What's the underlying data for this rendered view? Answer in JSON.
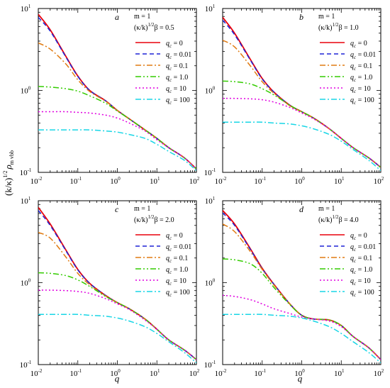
{
  "figure": {
    "ylabel_main": "(k/κ)",
    "ylabel_exp": "1/2",
    "ylabel_rho": "ρ",
    "ylabel_sub": "m vbb",
    "xlabel": "q"
  },
  "chart_data": [
    {
      "type": "line",
      "panel_label": "a",
      "scale": "log-log",
      "xlim": [
        0.01,
        100
      ],
      "ylim": [
        0.1,
        10
      ],
      "x_ticks": [
        "10",
        "10",
        "10",
        "10",
        "10"
      ],
      "x_tick_exps": [
        "-2",
        "-1",
        "0",
        "1",
        "2"
      ],
      "y_ticks": [
        "10",
        "10",
        "10"
      ],
      "y_tick_exps": [
        "-1",
        "0",
        "1"
      ],
      "legend_title1": "m = 1",
      "legend_title2": "(κ/k)",
      "legend_title2_exp": "1/2",
      "legend_title2_rest": "β = 0.5",
      "x": [
        0.01,
        0.02,
        0.05,
        0.1,
        0.2,
        0.5,
        1,
        2,
        5,
        10,
        20,
        50,
        100
      ],
      "series": [
        {
          "name": "q",
          "name_sub": "c",
          "name_rest": " = 0",
          "color": "#e8000b",
          "dash": "solid",
          "values": [
            8.5,
            5.5,
            2.6,
            1.5,
            1.0,
            0.75,
            0.57,
            0.45,
            0.33,
            0.26,
            0.2,
            0.15,
            0.11
          ]
        },
        {
          "name": "q",
          "name_sub": "c",
          "name_rest": " = 0.01",
          "color": "#1f24d6",
          "dash": "dash",
          "values": [
            7.8,
            5.3,
            2.55,
            1.48,
            1.0,
            0.75,
            0.57,
            0.45,
            0.33,
            0.26,
            0.2,
            0.15,
            0.11
          ]
        },
        {
          "name": "q",
          "name_sub": "c",
          "name_rest": " = 0.1",
          "color": "#e07b12",
          "dash": "dashdot",
          "values": [
            3.8,
            3.2,
            2.1,
            1.35,
            0.97,
            0.74,
            0.57,
            0.45,
            0.33,
            0.26,
            0.2,
            0.15,
            0.11
          ]
        },
        {
          "name": "q",
          "name_sub": "c",
          "name_rest": " = 1.0",
          "color": "#33cc00",
          "dash": "dashdotdot",
          "values": [
            1.12,
            1.1,
            1.05,
            0.98,
            0.86,
            0.7,
            0.56,
            0.45,
            0.33,
            0.26,
            0.2,
            0.15,
            0.11
          ]
        },
        {
          "name": "q",
          "name_sub": "c",
          "name_rest": " = 10",
          "color": "#e000e0",
          "dash": "dot",
          "values": [
            0.55,
            0.55,
            0.55,
            0.54,
            0.53,
            0.5,
            0.46,
            0.4,
            0.32,
            0.25,
            0.2,
            0.15,
            0.11
          ]
        },
        {
          "name": "q",
          "name_sub": "c",
          "name_rest": " = 100",
          "color": "#19d6e6",
          "dash": "dashdot",
          "values": [
            0.33,
            0.33,
            0.33,
            0.33,
            0.33,
            0.32,
            0.31,
            0.29,
            0.26,
            0.22,
            0.18,
            0.14,
            0.105
          ]
        }
      ]
    },
    {
      "type": "line",
      "panel_label": "b",
      "scale": "log-log",
      "xlim": [
        0.01,
        100
      ],
      "ylim": [
        0.1,
        10
      ],
      "x_ticks": [
        "10",
        "10",
        "10",
        "10",
        "10"
      ],
      "x_tick_exps": [
        "-2",
        "-1",
        "0",
        "1",
        "2"
      ],
      "y_ticks": [
        "10",
        "10",
        "10"
      ],
      "y_tick_exps": [
        "-1",
        "0",
        "1"
      ],
      "legend_title1": "m = 1",
      "legend_title2": "(κ/k)",
      "legend_title2_exp": "1/2",
      "legend_title2_rest": "β = 1.0",
      "x": [
        0.01,
        0.02,
        0.05,
        0.1,
        0.2,
        0.5,
        1,
        2,
        5,
        10,
        20,
        50,
        100
      ],
      "series": [
        {
          "name": "q",
          "name_sub": "c",
          "name_rest": " = 0",
          "color": "#e8000b",
          "dash": "solid",
          "values": [
            7.8,
            5.0,
            2.4,
            1.4,
            0.95,
            0.66,
            0.55,
            0.46,
            0.34,
            0.26,
            0.2,
            0.15,
            0.115
          ]
        },
        {
          "name": "q",
          "name_sub": "c",
          "name_rest": " = 0.01",
          "color": "#1f24d6",
          "dash": "dash",
          "values": [
            7.2,
            4.8,
            2.35,
            1.38,
            0.95,
            0.66,
            0.55,
            0.46,
            0.34,
            0.26,
            0.2,
            0.15,
            0.115
          ]
        },
        {
          "name": "q",
          "name_sub": "c",
          "name_rest": " = 0.1",
          "color": "#e07b12",
          "dash": "dashdot",
          "values": [
            4.1,
            3.4,
            2.0,
            1.28,
            0.92,
            0.65,
            0.55,
            0.46,
            0.34,
            0.26,
            0.2,
            0.15,
            0.115
          ]
        },
        {
          "name": "q",
          "name_sub": "c",
          "name_rest": " = 1.0",
          "color": "#33cc00",
          "dash": "dashdotdot",
          "values": [
            1.3,
            1.28,
            1.2,
            1.05,
            0.88,
            0.66,
            0.55,
            0.46,
            0.34,
            0.26,
            0.2,
            0.15,
            0.115
          ]
        },
        {
          "name": "q",
          "name_sub": "c",
          "name_rest": " = 10",
          "color": "#e000e0",
          "dash": "dot",
          "values": [
            0.8,
            0.8,
            0.79,
            0.77,
            0.72,
            0.62,
            0.53,
            0.45,
            0.34,
            0.26,
            0.2,
            0.15,
            0.115
          ]
        },
        {
          "name": "q",
          "name_sub": "c",
          "name_rest": " = 100",
          "color": "#19d6e6",
          "dash": "dashdot",
          "values": [
            0.41,
            0.41,
            0.41,
            0.41,
            0.4,
            0.39,
            0.37,
            0.34,
            0.29,
            0.24,
            0.19,
            0.14,
            0.105
          ]
        }
      ]
    },
    {
      "type": "line",
      "panel_label": "c",
      "scale": "log-log",
      "xlim": [
        0.01,
        100
      ],
      "ylim": [
        0.1,
        10
      ],
      "x_ticks": [
        "10",
        "10",
        "10",
        "10",
        "10"
      ],
      "x_tick_exps": [
        "-2",
        "-1",
        "0",
        "1",
        "2"
      ],
      "y_ticks": [
        "10",
        "10",
        "10"
      ],
      "y_tick_exps": [
        "-1",
        "0",
        "1"
      ],
      "legend_title1": "m = 1",
      "legend_title2": "(κ/k)",
      "legend_title2_exp": "1/2",
      "legend_title2_rest": "β = 2.0",
      "x": [
        0.01,
        0.02,
        0.05,
        0.1,
        0.2,
        0.5,
        1,
        2,
        5,
        10,
        20,
        50,
        100
      ],
      "series": [
        {
          "name": "q",
          "name_sub": "c",
          "name_rest": " = 0",
          "color": "#e8000b",
          "dash": "solid",
          "values": [
            8.3,
            5.2,
            2.5,
            1.45,
            0.98,
            0.7,
            0.57,
            0.48,
            0.36,
            0.27,
            0.2,
            0.15,
            0.115
          ]
        },
        {
          "name": "q",
          "name_sub": "c",
          "name_rest": " = 0.01",
          "color": "#1f24d6",
          "dash": "dash",
          "values": [
            7.6,
            5.0,
            2.45,
            1.43,
            0.98,
            0.7,
            0.57,
            0.48,
            0.36,
            0.27,
            0.2,
            0.15,
            0.115
          ]
        },
        {
          "name": "q",
          "name_sub": "c",
          "name_rest": " = 0.1",
          "color": "#e07b12",
          "dash": "dashdot",
          "values": [
            4.1,
            3.5,
            2.05,
            1.3,
            0.94,
            0.69,
            0.57,
            0.48,
            0.36,
            0.27,
            0.2,
            0.15,
            0.115
          ]
        },
        {
          "name": "q",
          "name_sub": "c",
          "name_rest": " = 1.0",
          "color": "#33cc00",
          "dash": "dashdotdot",
          "values": [
            1.32,
            1.3,
            1.22,
            1.08,
            0.9,
            0.68,
            0.57,
            0.48,
            0.36,
            0.27,
            0.2,
            0.15,
            0.115
          ]
        },
        {
          "name": "q",
          "name_sub": "c",
          "name_rest": " = 10",
          "color": "#e000e0",
          "dash": "dot",
          "values": [
            0.81,
            0.81,
            0.8,
            0.78,
            0.74,
            0.64,
            0.55,
            0.47,
            0.35,
            0.27,
            0.2,
            0.15,
            0.115
          ]
        },
        {
          "name": "q",
          "name_sub": "c",
          "name_rest": " = 100",
          "color": "#19d6e6",
          "dash": "dashdot",
          "values": [
            0.41,
            0.41,
            0.41,
            0.41,
            0.4,
            0.39,
            0.37,
            0.34,
            0.29,
            0.24,
            0.19,
            0.14,
            0.105
          ]
        }
      ]
    },
    {
      "type": "line",
      "panel_label": "d",
      "scale": "log-log",
      "xlim": [
        0.01,
        100
      ],
      "ylim": [
        0.1,
        10
      ],
      "x_ticks": [
        "10",
        "10",
        "10",
        "10",
        "10"
      ],
      "x_tick_exps": [
        "-2",
        "-1",
        "0",
        "1",
        "2"
      ],
      "y_ticks": [
        "10",
        "10",
        "10"
      ],
      "y_tick_exps": [
        "-1",
        "0",
        "1"
      ],
      "legend_title1": "m = 1",
      "legend_title2": "(κ/k)",
      "legend_title2_exp": "1/2",
      "legend_title2_rest": "β = 4.0",
      "x": [
        0.01,
        0.02,
        0.05,
        0.1,
        0.2,
        0.5,
        1,
        2,
        5,
        10,
        20,
        50,
        100
      ],
      "series": [
        {
          "name": "q",
          "name_sub": "c",
          "name_rest": " = 0",
          "color": "#e8000b",
          "dash": "solid",
          "values": [
            7.6,
            5.2,
            2.6,
            1.5,
            0.95,
            0.55,
            0.4,
            0.36,
            0.35,
            0.3,
            0.22,
            0.16,
            0.115
          ]
        },
        {
          "name": "q",
          "name_sub": "c",
          "name_rest": " = 0.01",
          "color": "#1f24d6",
          "dash": "dash",
          "values": [
            7.1,
            5.0,
            2.55,
            1.48,
            0.95,
            0.55,
            0.4,
            0.36,
            0.35,
            0.3,
            0.22,
            0.16,
            0.115
          ]
        },
        {
          "name": "q",
          "name_sub": "c",
          "name_rest": " = 0.1",
          "color": "#e07b12",
          "dash": "dashdot",
          "values": [
            5.2,
            4.2,
            2.4,
            1.45,
            0.93,
            0.55,
            0.4,
            0.36,
            0.35,
            0.3,
            0.22,
            0.16,
            0.115
          ]
        },
        {
          "name": "q",
          "name_sub": "c",
          "name_rest": " = 1.0",
          "color": "#33cc00",
          "dash": "dashdotdot",
          "values": [
            1.95,
            1.9,
            1.7,
            1.3,
            0.87,
            0.54,
            0.4,
            0.36,
            0.35,
            0.3,
            0.22,
            0.16,
            0.115
          ]
        },
        {
          "name": "q",
          "name_sub": "c",
          "name_rest": " = 10",
          "color": "#e000e0",
          "dash": "dot",
          "values": [
            0.7,
            0.68,
            0.62,
            0.55,
            0.48,
            0.42,
            0.38,
            0.36,
            0.34,
            0.29,
            0.22,
            0.16,
            0.115
          ]
        },
        {
          "name": "q",
          "name_sub": "c",
          "name_rest": " = 100",
          "color": "#19d6e6",
          "dash": "dashdot",
          "values": [
            0.41,
            0.41,
            0.41,
            0.41,
            0.4,
            0.39,
            0.37,
            0.34,
            0.29,
            0.24,
            0.19,
            0.14,
            0.105
          ]
        }
      ]
    }
  ]
}
